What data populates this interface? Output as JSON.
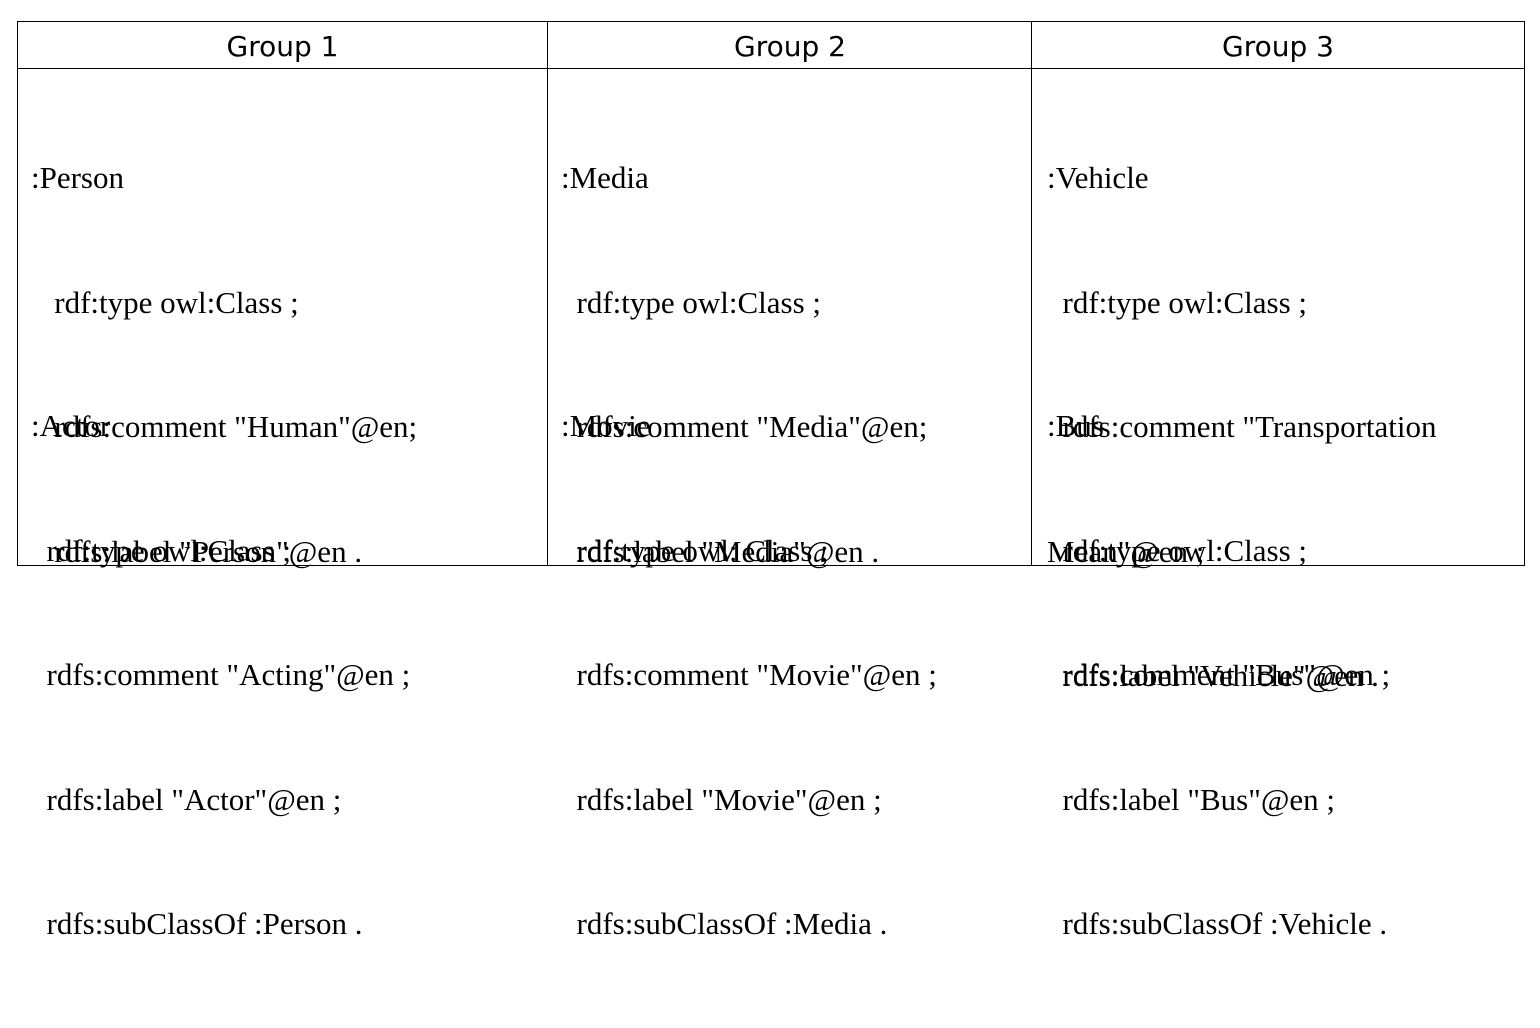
{
  "columns": [
    {
      "header": "Group 1",
      "blocks": [
        [
          ":Person",
          "   rdf:type owl:Class ;",
          "   rdfs:comment \"Human\"@en;",
          "   rdfs:label \"Person\"@en ."
        ],
        [
          ":Actor",
          "  rdf:type owl:Class ;",
          "  rdfs:comment \"Acting\"@en ;",
          "  rdfs:label \"Actor\"@en ;",
          "  rdfs:subClassOf :Person ."
        ]
      ]
    },
    {
      "header": "Group 2",
      "blocks": [
        [
          ":Media",
          "  rdf:type owl:Class ;",
          "  rdfs:comment \"Media\"@en;",
          "  rdfs:label \"Media\"@en ."
        ],
        [
          ":Movie",
          "  rdf:type owl: Class ;",
          "  rdfs:comment \"Movie\"@en ;",
          "  rdfs:label \"Movie\"@en ;",
          "  rdfs:subClassOf :Media ."
        ]
      ]
    },
    {
      "header": "Group 3",
      "blocks": [
        [
          ":Vehicle",
          "  rdf:type owl:Class ;",
          "  rdfs:comment \"Transportation",
          "Mean\"@en ;",
          "  rdfs:label \"Vehicle\"@en ."
        ],
        [
          ":Bus",
          "  rdf:type owl:Class ;",
          "  rdfs:comment \"Bus\"@en ;",
          "  rdfs:label \"Bus\"@en ;",
          "  rdfs:subClassOf :Vehicle ."
        ]
      ]
    }
  ]
}
